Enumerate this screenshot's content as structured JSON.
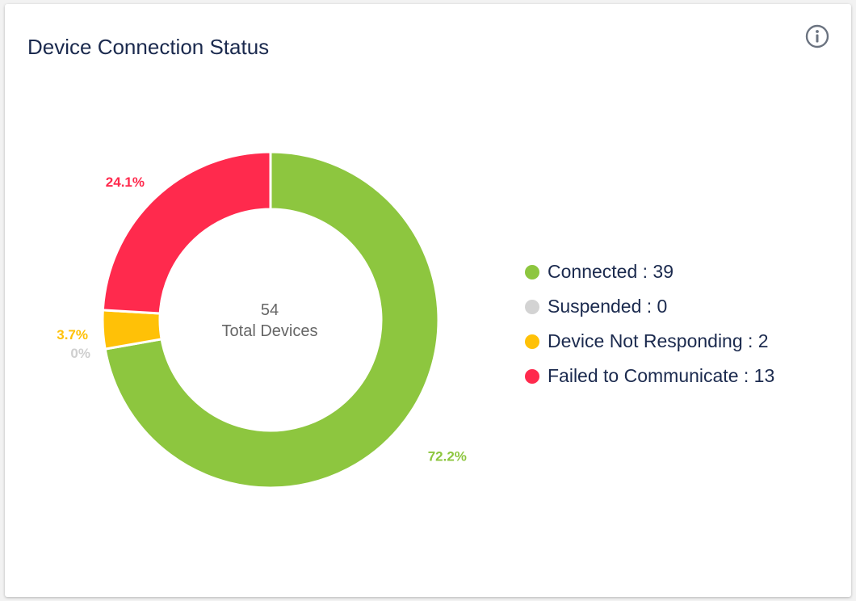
{
  "card": {
    "title": "Device Connection Status"
  },
  "icons": {
    "info": "info-circle-icon"
  },
  "chart_data": {
    "type": "pie",
    "variant": "donut",
    "title": "Device Connection Status",
    "center": {
      "value": "54",
      "label": "Total Devices"
    },
    "total": 54,
    "slices": [
      {
        "name": "Connected",
        "value": 39,
        "percent_label": "72.2%",
        "color": "#8dc63f"
      },
      {
        "name": "Suspended",
        "value": 0,
        "percent_label": "0%",
        "color": "#d3d3d3"
      },
      {
        "name": "Device Not Responding",
        "value": 2,
        "percent_label": "3.7%",
        "color": "#ffc107"
      },
      {
        "name": "Failed to Communicate",
        "value": 13,
        "percent_label": "24.1%",
        "color": "#ff2a4d"
      }
    ],
    "legend": {
      "placement": "right",
      "separator": " : "
    }
  }
}
